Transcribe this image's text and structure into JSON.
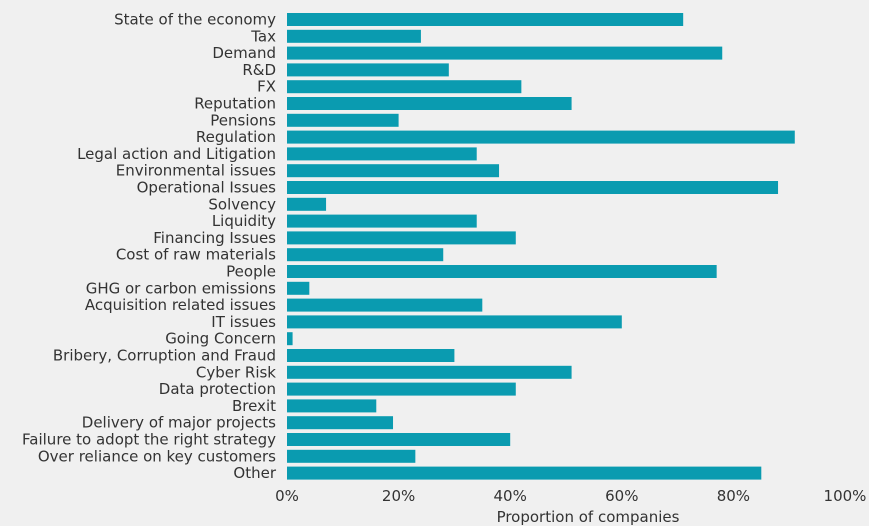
{
  "chart_data": {
    "type": "bar",
    "orientation": "horizontal",
    "title": "",
    "xlabel": "Proportion of companies",
    "ylabel": "",
    "xlim": [
      0,
      100
    ],
    "x_ticks": [
      "0%",
      "20%",
      "40%",
      "60%",
      "80%",
      "100%"
    ],
    "grid": false,
    "legend": "none",
    "bar_color": "#0a9bb0",
    "categories": [
      "State of the economy",
      "Tax",
      "Demand",
      "R&D",
      "FX",
      "Reputation",
      "Pensions",
      "Regulation",
      "Legal action and Litigation",
      "Environmental issues",
      "Operational Issues",
      "Solvency",
      "Liquidity",
      "Financing Issues",
      "Cost of raw materials",
      "People",
      "GHG or carbon emissions",
      "Acquisition related issues",
      "IT issues",
      "Going Concern",
      "Bribery, Corruption and Fraud",
      "Cyber Risk",
      "Data protection",
      "Brexit",
      "Delivery of major projects",
      "Failure to adopt the right strategy",
      "Over reliance on key customers",
      "Other"
    ],
    "values": [
      71,
      24,
      78,
      29,
      42,
      51,
      20,
      91,
      34,
      38,
      88,
      7,
      34,
      41,
      28,
      77,
      4,
      35,
      60,
      1,
      30,
      51,
      41,
      16,
      19,
      40,
      23,
      85
    ]
  }
}
